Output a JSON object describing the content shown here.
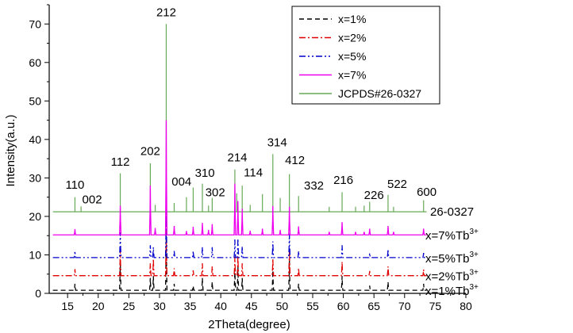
{
  "chart_data": {
    "type": "line",
    "xlabel": "2Theta(degree)",
    "ylabel": "Intensity(a.u.)",
    "xlim": [
      12,
      80
    ],
    "ylim": [
      0,
      75
    ],
    "xticks": [
      15,
      20,
      25,
      30,
      35,
      40,
      45,
      50,
      55,
      60,
      65,
      70,
      75,
      80
    ],
    "yticks": [
      0,
      10,
      20,
      30,
      40,
      50,
      60,
      70
    ],
    "legend_position": "top-right",
    "legend": [
      {
        "label": "x=1%",
        "color": "#000000",
        "dash": "6,4"
      },
      {
        "label": "x=2%",
        "color": "#e00000",
        "dash": "8,3,2,3"
      },
      {
        "label": "x=5%",
        "color": "#0000cc",
        "dash": "8,3,2,3,2,3"
      },
      {
        "label": "x=7%",
        "color": "#ee00ee",
        "dash": ""
      },
      {
        "label": "JCPDS#26-0327",
        "color": "#66aa55",
        "dash": ""
      }
    ],
    "reference": {
      "name": "JCPDS#26-0327",
      "baseline": 21.2,
      "color": "#66aa55",
      "peaks": [
        [
          16.2,
          25.0
        ],
        [
          17.2,
          22.6
        ],
        [
          23.6,
          31.2
        ],
        [
          28.5,
          33.8
        ],
        [
          29.3,
          23.0
        ],
        [
          31.1,
          70.0
        ],
        [
          32.4,
          23.5
        ],
        [
          34.4,
          25.0
        ],
        [
          35.5,
          27.5
        ],
        [
          37.0,
          28.5
        ],
        [
          38.0,
          22.8
        ],
        [
          38.6,
          24.8
        ],
        [
          42.3,
          32.2
        ],
        [
          42.6,
          26.0
        ],
        [
          43.5,
          28.0
        ],
        [
          44.8,
          23.0
        ],
        [
          46.8,
          25.8
        ],
        [
          48.5,
          36.2
        ],
        [
          49.7,
          24.8
        ],
        [
          51.2,
          31.0
        ],
        [
          52.7,
          25.3
        ],
        [
          57.7,
          22.5
        ],
        [
          59.8,
          26.3
        ],
        [
          62.0,
          22.5
        ],
        [
          63.4,
          22.8
        ],
        [
          64.3,
          23.8
        ],
        [
          67.3,
          25.6
        ],
        [
          68.2,
          22.5
        ],
        [
          73.1,
          24.2
        ]
      ]
    },
    "series": [
      {
        "name": "x=1%",
        "label": "x=1%Tb",
        "label_sup": "3+",
        "baseline": 0.8,
        "color": "#000000",
        "dash": "6,4",
        "peaks": [
          [
            16.2,
            2.5
          ],
          [
            23.6,
            8.5
          ],
          [
            28.5,
            4.0
          ],
          [
            29.0,
            4.5
          ],
          [
            31.1,
            14.5
          ],
          [
            32.4,
            2.5
          ],
          [
            35.5,
            2.0
          ],
          [
            37.0,
            4.0
          ],
          [
            38.6,
            3.0
          ],
          [
            42.3,
            6.5
          ],
          [
            42.8,
            7.0
          ],
          [
            43.5,
            4.0
          ],
          [
            48.5,
            6.0
          ],
          [
            51.2,
            8.5
          ],
          [
            52.7,
            2.5
          ],
          [
            59.8,
            4.5
          ],
          [
            64.3,
            2.0
          ],
          [
            67.3,
            3.0
          ],
          [
            73.1,
            2.5
          ]
        ]
      },
      {
        "name": "x=2%",
        "label": "x=2%Tb",
        "label_sup": "3+",
        "baseline": 4.6,
        "color": "#e00000",
        "dash": "8,3,2,3",
        "peaks": [
          [
            16.2,
            6.3
          ],
          [
            23.6,
            11.3
          ],
          [
            28.5,
            7.8
          ],
          [
            29.0,
            9.0
          ],
          [
            31.1,
            17.0
          ],
          [
            32.4,
            6.5
          ],
          [
            35.5,
            6.0
          ],
          [
            37.0,
            7.8
          ],
          [
            38.6,
            7.0
          ],
          [
            42.3,
            9.5
          ],
          [
            42.8,
            9.8
          ],
          [
            43.5,
            7.8
          ],
          [
            48.5,
            9.0
          ],
          [
            51.2,
            11.5
          ],
          [
            52.7,
            6.5
          ],
          [
            59.8,
            8.2
          ],
          [
            64.3,
            5.8
          ],
          [
            67.3,
            7.0
          ],
          [
            73.1,
            6.2
          ]
        ]
      },
      {
        "name": "x=5%",
        "label": "x=5%Tb",
        "label_sup": "3+",
        "baseline": 9.3,
        "color": "#0000cc",
        "dash": "8,3,2,3,2,3",
        "peaks": [
          [
            16.2,
            11.0
          ],
          [
            23.6,
            15.8
          ],
          [
            28.5,
            12.5
          ],
          [
            29.0,
            12.0
          ],
          [
            31.1,
            23.0
          ],
          [
            32.4,
            11.0
          ],
          [
            35.5,
            11.0
          ],
          [
            37.0,
            12.0
          ],
          [
            38.6,
            12.0
          ],
          [
            42.3,
            14.0
          ],
          [
            42.8,
            14.2
          ],
          [
            43.5,
            12.2
          ],
          [
            48.5,
            13.5
          ],
          [
            51.2,
            15.5
          ],
          [
            52.7,
            11.0
          ],
          [
            59.8,
            12.5
          ],
          [
            64.3,
            10.5
          ],
          [
            67.3,
            11.5
          ],
          [
            73.1,
            10.5
          ]
        ]
      },
      {
        "name": "x=7%",
        "label": "x=7%Tb",
        "label_sup": "3+",
        "baseline": 15.2,
        "color": "#ee00ee",
        "dash": "",
        "peaks": [
          [
            16.2,
            16.7
          ],
          [
            23.6,
            22.8
          ],
          [
            28.5,
            28.0
          ],
          [
            29.3,
            17.0
          ],
          [
            31.1,
            45.0
          ],
          [
            32.4,
            17.5
          ],
          [
            34.4,
            16.2
          ],
          [
            35.5,
            17.3
          ],
          [
            37.0,
            18.3
          ],
          [
            38.0,
            16.5
          ],
          [
            38.6,
            18.0
          ],
          [
            42.3,
            28.5
          ],
          [
            42.8,
            24.0
          ],
          [
            43.5,
            22.0
          ],
          [
            44.8,
            16.3
          ],
          [
            46.8,
            16.8
          ],
          [
            48.5,
            22.7
          ],
          [
            49.7,
            16.5
          ],
          [
            51.2,
            22.5
          ],
          [
            52.7,
            17.4
          ],
          [
            57.7,
            16.0
          ],
          [
            59.8,
            18.5
          ],
          [
            62.0,
            16.0
          ],
          [
            63.4,
            16.0
          ],
          [
            64.3,
            16.8
          ],
          [
            67.3,
            17.5
          ],
          [
            68.2,
            16.0
          ],
          [
            73.1,
            16.8
          ]
        ]
      }
    ],
    "reference_label": "26-0327",
    "peak_labels": [
      {
        "text": "110",
        "x": 16.2,
        "y": 27.2
      },
      {
        "text": "002",
        "x": 19.0,
        "y": 23.4
      },
      {
        "text": "112",
        "x": 23.6,
        "y": 33.2
      },
      {
        "text": "202",
        "x": 28.5,
        "y": 36.0
      },
      {
        "text": "212",
        "x": 31.1,
        "y": 72.0
      },
      {
        "text": "004",
        "x": 33.6,
        "y": 28.0
      },
      {
        "text": "310",
        "x": 37.4,
        "y": 30.3
      },
      {
        "text": "302",
        "x": 39.1,
        "y": 25.2
      },
      {
        "text": "214",
        "x": 42.7,
        "y": 34.3
      },
      {
        "text": "114",
        "x": 45.3,
        "y": 30.4
      },
      {
        "text": "314",
        "x": 49.2,
        "y": 38.2
      },
      {
        "text": "412",
        "x": 52.1,
        "y": 33.6
      },
      {
        "text": "332",
        "x": 55.2,
        "y": 27.0
      },
      {
        "text": "216",
        "x": 60.0,
        "y": 28.4
      },
      {
        "text": "226",
        "x": 65.0,
        "y": 24.5
      },
      {
        "text": "522",
        "x": 68.8,
        "y": 27.4
      },
      {
        "text": "600",
        "x": 73.6,
        "y": 25.3
      }
    ]
  }
}
